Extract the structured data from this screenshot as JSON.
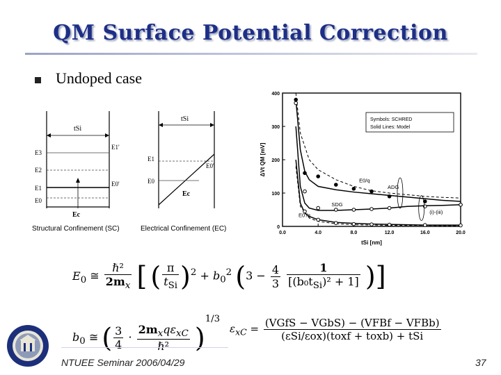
{
  "slide": {
    "title": "QM Surface Potential Correction",
    "bullet": "Undoped case",
    "footer": "NTUEE Seminar 2006/04/29",
    "page_number": "37",
    "title_color": "#1d2f86"
  },
  "sc_diagram": {
    "caption": "Structural Confinement (SC)",
    "tsi": "tSi",
    "left_levels": [
      "E3",
      "E2",
      "E1",
      "E0"
    ],
    "right_levels": [
      "E1'",
      "E0'"
    ],
    "ec": "Ec"
  },
  "ec_diagram": {
    "caption": "Electrical Confinement (EC)",
    "tsi": "tSi",
    "levels": [
      "E1",
      "E0"
    ],
    "e0prime": "E0'",
    "ec": "Ec"
  },
  "chart_data": {
    "type": "line",
    "xlabel": "tSi [nm]",
    "ylabel": "ΔVt QM [mV]",
    "xlim": [
      0,
      20
    ],
    "ylim": [
      0,
      400
    ],
    "xticks": [
      "0.0",
      "4.0",
      "8.0",
      "12.0",
      "16.0",
      "20.0"
    ],
    "yticks": [
      "0",
      "100",
      "200",
      "300",
      "400"
    ],
    "legend": [
      "Symbols: SCHRED",
      "Solid Lines: Model"
    ],
    "annotations": [
      "E0/q",
      "ADG",
      "SDG",
      "E0'/q",
      "(i)-(iii)"
    ],
    "series": [
      {
        "style": "dashed",
        "x": [
          1.5,
          2,
          3,
          4,
          6,
          8,
          10,
          12,
          14,
          16,
          18,
          20
        ],
        "y": [
          400,
          280,
          200,
          170,
          140,
          120,
          107,
          100,
          95,
          90,
          87,
          85
        ]
      },
      {
        "style": "solid",
        "x": [
          1.5,
          2,
          2.5,
          3,
          4,
          6,
          8,
          10,
          12,
          14,
          16,
          18,
          20
        ],
        "y": [
          380,
          230,
          165,
          140,
          120,
          110,
          103,
          98,
          93,
          88,
          83,
          78,
          75
        ]
      },
      {
        "style": "solid",
        "x": [
          1.5,
          2,
          2.5,
          3,
          4,
          6,
          8,
          10,
          12,
          14,
          16,
          18,
          20
        ],
        "y": [
          300,
          120,
          70,
          55,
          48,
          48,
          50,
          52,
          55,
          60,
          62,
          63,
          65
        ]
      },
      {
        "style": "solid",
        "x": [
          1.5,
          2,
          2.5,
          3,
          4,
          6,
          8,
          10,
          12,
          14,
          16,
          18,
          20
        ],
        "y": [
          200,
          70,
          40,
          30,
          20,
          12,
          9,
          7,
          6,
          5,
          4,
          4,
          4
        ]
      },
      {
        "style": "dashed",
        "x": [
          1.5,
          2,
          3,
          4,
          6,
          8,
          10,
          12,
          14,
          16,
          18,
          20
        ],
        "y": [
          180,
          60,
          25,
          15,
          8,
          5,
          4,
          3,
          3,
          3,
          2,
          2
        ]
      },
      {
        "name": "SCHRED ADG",
        "style": "marker-filled",
        "x": [
          1.5,
          2.5,
          4,
          6,
          8,
          10,
          12,
          16,
          20
        ],
        "y": [
          380,
          160,
          150,
          125,
          113,
          105,
          90,
          75,
          65
        ]
      },
      {
        "name": "SCHRED SDG",
        "style": "marker-open",
        "x": [
          1.5,
          2.5,
          4,
          6,
          8,
          10,
          12,
          16,
          20
        ],
        "y": [
          370,
          105,
          55,
          50,
          50,
          52,
          55,
          60,
          65
        ]
      },
      {
        "name": "SCHRED lower",
        "style": "marker-open",
        "x": [
          2.5,
          4,
          6,
          8,
          10,
          12,
          16,
          20
        ],
        "y": [
          45,
          20,
          10,
          7,
          6,
          5,
          4,
          3
        ]
      }
    ]
  },
  "eq": {
    "e0_lhs": "E",
    "e0_sub": "0",
    "approx": "≅",
    "hbar2": "ℏ²",
    "two_mx": "2m",
    "mx_sub": "x",
    "pi": "π",
    "tsi": "t",
    "tsi_sub": "Si",
    "exp2": "2",
    "plus_b0": "+ b",
    "b0_sub": "0",
    "three_minus": "3 −",
    "four": "4",
    "three": "3",
    "one": "1",
    "den_text": "[(b₀t",
    "den_tail": ")² + 1]",
    "b0_lhs": "b",
    "b0_frac_num": "3",
    "b0_frac_den": "4",
    "cdot": "·",
    "b0_num2": "2m",
    "b0_num2_tail": "qε",
    "xc_sub": "xC",
    "b0_den2": "ℏ²",
    "exp13": "1/3",
    "exc_lhs": "ε",
    "exc_num": "(V",
    "exc_num_full": "(VGfS − VGbS) − (VFBf − VFBb)",
    "exc_den_full": "(εSi/εox)(toxf + toxb) + tSi",
    "equals": "="
  }
}
